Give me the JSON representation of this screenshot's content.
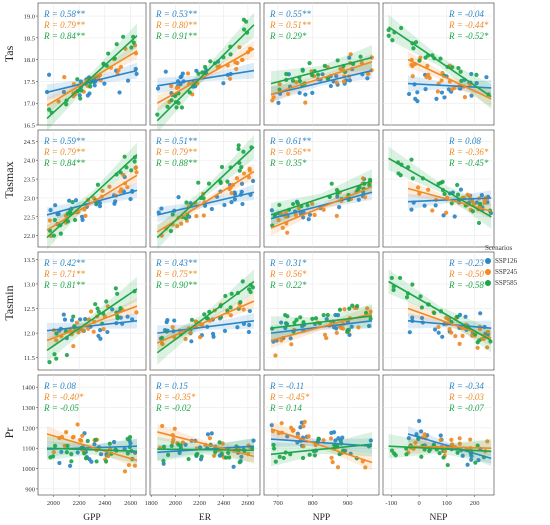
{
  "chart_data": {
    "type": "scatter",
    "grid": true,
    "legend": {
      "title": "Scenarios",
      "placement": "right",
      "items": [
        {
          "name": "SSP126",
          "color": "#2b86c5"
        },
        {
          "name": "SSP245",
          "color": "#f08a24"
        },
        {
          "name": "SSP585",
          "color": "#1ea64a"
        }
      ]
    },
    "columns": [
      {
        "label": "GPP",
        "ticks": [
          2000,
          2200,
          2400,
          2600
        ],
        "xlim": [
          1880,
          2720
        ]
      },
      {
        "label": "ER",
        "ticks": [
          1800,
          2000,
          2200,
          2400,
          2600
        ],
        "xlim": [
          1790,
          2700
        ]
      },
      {
        "label": "NPP",
        "ticks": [
          700,
          800,
          900
        ],
        "xlim": [
          660,
          990
        ]
      },
      {
        "label": "NEP",
        "ticks": [
          -100,
          0,
          100,
          200
        ],
        "xlim": [
          -130,
          270
        ]
      }
    ],
    "rows": [
      {
        "label": "Tas",
        "ticks": [
          16.5,
          17.0,
          17.5,
          18.0,
          18.5,
          19.0
        ],
        "ylim": [
          16.5,
          19.3
        ]
      },
      {
        "label": "Tasmax",
        "ticks": [
          22.0,
          22.5,
          23.0,
          23.5,
          24.0,
          24.5
        ],
        "ylim": [
          21.7,
          24.8
        ]
      },
      {
        "label": "Tasmin",
        "ticks": [
          11.5,
          12.0,
          12.5,
          13.0,
          13.5
        ],
        "ylim": [
          11.25,
          13.65
        ]
      },
      {
        "label": "Pr",
        "ticks": [
          900,
          1000,
          1100,
          1200,
          1300,
          1400
        ],
        "ylim": [
          870,
          1460
        ]
      }
    ],
    "panels": [
      {
        "row": 0,
        "col": 0,
        "r": [
          [
            "R = 0.58**"
          ],
          [
            "R = 0.79**"
          ],
          [
            "R = 0.84**"
          ]
        ],
        "fits": [
          [
            1950,
            17.25,
            2650,
            17.75
          ],
          [
            1950,
            16.95,
            2650,
            18.2
          ],
          [
            1950,
            16.65,
            2650,
            18.55
          ]
        ]
      },
      {
        "row": 0,
        "col": 1,
        "r": [
          [
            "R = 0.53**"
          ],
          [
            "R = 0.80**"
          ],
          [
            "R = 0.91**"
          ]
        ],
        "fits": [
          [
            1850,
            17.4,
            2650,
            17.75
          ],
          [
            1850,
            17.0,
            2650,
            18.25
          ],
          [
            1850,
            16.6,
            2650,
            18.8
          ]
        ]
      },
      {
        "row": 0,
        "col": 2,
        "r": [
          [
            "R = 0.55**"
          ],
          [
            "R = 0.51**"
          ],
          [
            "R = 0.29*"
          ]
        ],
        "fits": [
          [
            680,
            17.2,
            970,
            17.75
          ],
          [
            680,
            17.2,
            970,
            17.95
          ],
          [
            680,
            17.45,
            970,
            18.05
          ]
        ]
      },
      {
        "row": 0,
        "col": 3,
        "r": [
          [
            "R = -0.04"
          ],
          [
            "R = -0.44*"
          ],
          [
            "R = -0.52*"
          ]
        ],
        "fits": [
          [
            -40,
            17.45,
            260,
            17.35
          ],
          [
            -40,
            18.0,
            260,
            17.1
          ],
          [
            -110,
            18.75,
            260,
            17.15
          ]
        ]
      },
      {
        "row": 1,
        "col": 0,
        "r": [
          [
            "R = 0.59**"
          ],
          [
            "R = 0.79**"
          ],
          [
            "R = 0.84**"
          ]
        ],
        "fits": [
          [
            1950,
            22.55,
            2650,
            23.2
          ],
          [
            1950,
            22.15,
            2650,
            23.6
          ],
          [
            1950,
            21.95,
            2650,
            24.15
          ]
        ]
      },
      {
        "row": 1,
        "col": 1,
        "r": [
          [
            "R = 0.51**"
          ],
          [
            "R = 0.79**"
          ],
          [
            "R = 0.88**"
          ]
        ],
        "fits": [
          [
            1850,
            22.55,
            2650,
            23.15
          ],
          [
            1850,
            22.1,
            2650,
            23.7
          ],
          [
            1850,
            21.95,
            2650,
            24.35
          ]
        ]
      },
      {
        "row": 1,
        "col": 2,
        "r": [
          [
            "R = 0.61**"
          ],
          [
            "R = 0.56**"
          ],
          [
            "R = 0.35*"
          ]
        ],
        "fits": [
          [
            680,
            22.45,
            970,
            23.15
          ],
          [
            680,
            22.2,
            970,
            23.3
          ],
          [
            680,
            22.55,
            970,
            23.45
          ]
        ]
      },
      {
        "row": 1,
        "col": 3,
        "r": [
          [
            "R = 0.08"
          ],
          [
            "R = -0.36*"
          ],
          [
            "R = -0.45*"
          ]
        ],
        "fits": [
          [
            -40,
            22.9,
            260,
            23.0
          ],
          [
            -40,
            23.25,
            260,
            22.65
          ],
          [
            -110,
            24.05,
            260,
            22.5
          ]
        ]
      },
      {
        "row": 2,
        "col": 0,
        "r": [
          [
            "R = 0.42**"
          ],
          [
            "R = 0.71**"
          ],
          [
            "R = 0.81**"
          ]
        ],
        "fits": [
          [
            1950,
            12.05,
            2650,
            12.25
          ],
          [
            1950,
            11.85,
            2650,
            12.55
          ],
          [
            1950,
            11.65,
            2650,
            12.9
          ]
        ]
      },
      {
        "row": 2,
        "col": 1,
        "r": [
          [
            "R = 0.43**"
          ],
          [
            "R = 0.75**"
          ],
          [
            "R = 0.90**"
          ]
        ],
        "fits": [
          [
            1850,
            12.0,
            2650,
            12.25
          ],
          [
            1850,
            11.8,
            2650,
            12.65
          ],
          [
            1850,
            11.6,
            2650,
            13.05
          ]
        ]
      },
      {
        "row": 2,
        "col": 2,
        "r": [
          [
            "R = 0.31*"
          ],
          [
            "R = 0.56*"
          ],
          [
            "R = 0.22*"
          ]
        ],
        "fits": [
          [
            680,
            12.0,
            970,
            12.25
          ],
          [
            680,
            11.85,
            970,
            12.4
          ],
          [
            680,
            12.1,
            970,
            12.35
          ]
        ]
      },
      {
        "row": 2,
        "col": 3,
        "r": [
          [
            "R = -0.23"
          ],
          [
            "R = -0.50*"
          ],
          [
            "R = -0.58*"
          ]
        ],
        "fits": [
          [
            -40,
            12.25,
            260,
            12.1
          ],
          [
            -40,
            12.5,
            260,
            11.9
          ],
          [
            -110,
            13.05,
            260,
            11.85
          ]
        ]
      },
      {
        "row": 3,
        "col": 0,
        "r": [
          [
            "R = 0.08"
          ],
          [
            "R = -0.40*"
          ],
          [
            "R = -0.05"
          ]
        ],
        "fits": [
          [
            1950,
            1095,
            2650,
            1110
          ],
          [
            1950,
            1170,
            2650,
            1040
          ],
          [
            1950,
            1100,
            2650,
            1085
          ]
        ]
      },
      {
        "row": 3,
        "col": 1,
        "r": [
          [
            "R = 0.15"
          ],
          [
            "R = -0.35*"
          ],
          [
            "R = -0.02"
          ]
        ],
        "fits": [
          [
            1850,
            1080,
            2650,
            1110
          ],
          [
            1850,
            1180,
            2650,
            1060
          ],
          [
            1850,
            1095,
            2650,
            1090
          ]
        ]
      },
      {
        "row": 3,
        "col": 2,
        "r": [
          [
            "R = -0.11"
          ],
          [
            "R = -0.45*"
          ],
          [
            "R = 0.14"
          ]
        ],
        "fits": [
          [
            680,
            1145,
            970,
            1110
          ],
          [
            680,
            1195,
            970,
            1030
          ],
          [
            680,
            1070,
            970,
            1120
          ]
        ]
      },
      {
        "row": 3,
        "col": 3,
        "r": [
          [
            "R = -0.34"
          ],
          [
            "R = -0.03"
          ],
          [
            "R = -0.07"
          ]
        ],
        "fits": [
          [
            -40,
            1170,
            260,
            1050
          ],
          [
            -40,
            1110,
            260,
            1100
          ],
          [
            -110,
            1110,
            260,
            1085
          ]
        ]
      }
    ]
  }
}
